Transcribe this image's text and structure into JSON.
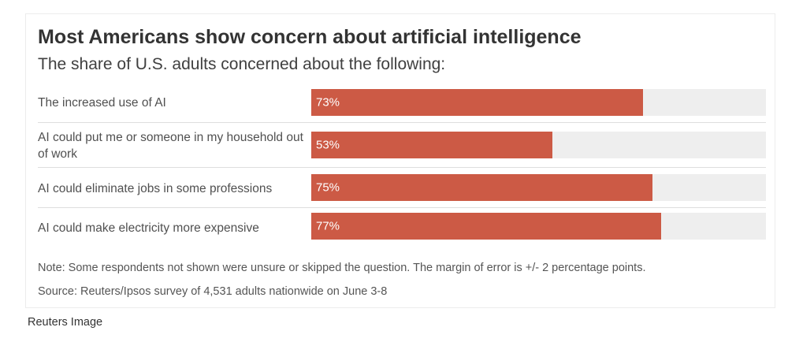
{
  "chart_data": {
    "type": "bar",
    "orientation": "horizontal",
    "title": "Most Americans show concern about artificial intelligence",
    "subtitle": "The share of U.S. adults concerned about the following:",
    "categories": [
      "The increased use of AI",
      "AI could put me or someone in my household out of work",
      "AI could eliminate jobs in some professions",
      "AI could make electricity more expensive"
    ],
    "values": [
      73,
      53,
      75,
      77
    ],
    "value_labels": [
      "73%",
      "53%",
      "75%",
      "77%"
    ],
    "xlim": [
      0,
      100
    ],
    "grid": false,
    "bar_color": "#cc5a45",
    "track_color": "#eeeeee",
    "note": "Note: Some respondents not shown were unsure or skipped the question. The margin of error is +/- 2 percentage points.",
    "source": "Source: Reuters/Ipsos survey of 4,531 adults nationwide on June 3-8"
  },
  "credit": "Reuters Image"
}
